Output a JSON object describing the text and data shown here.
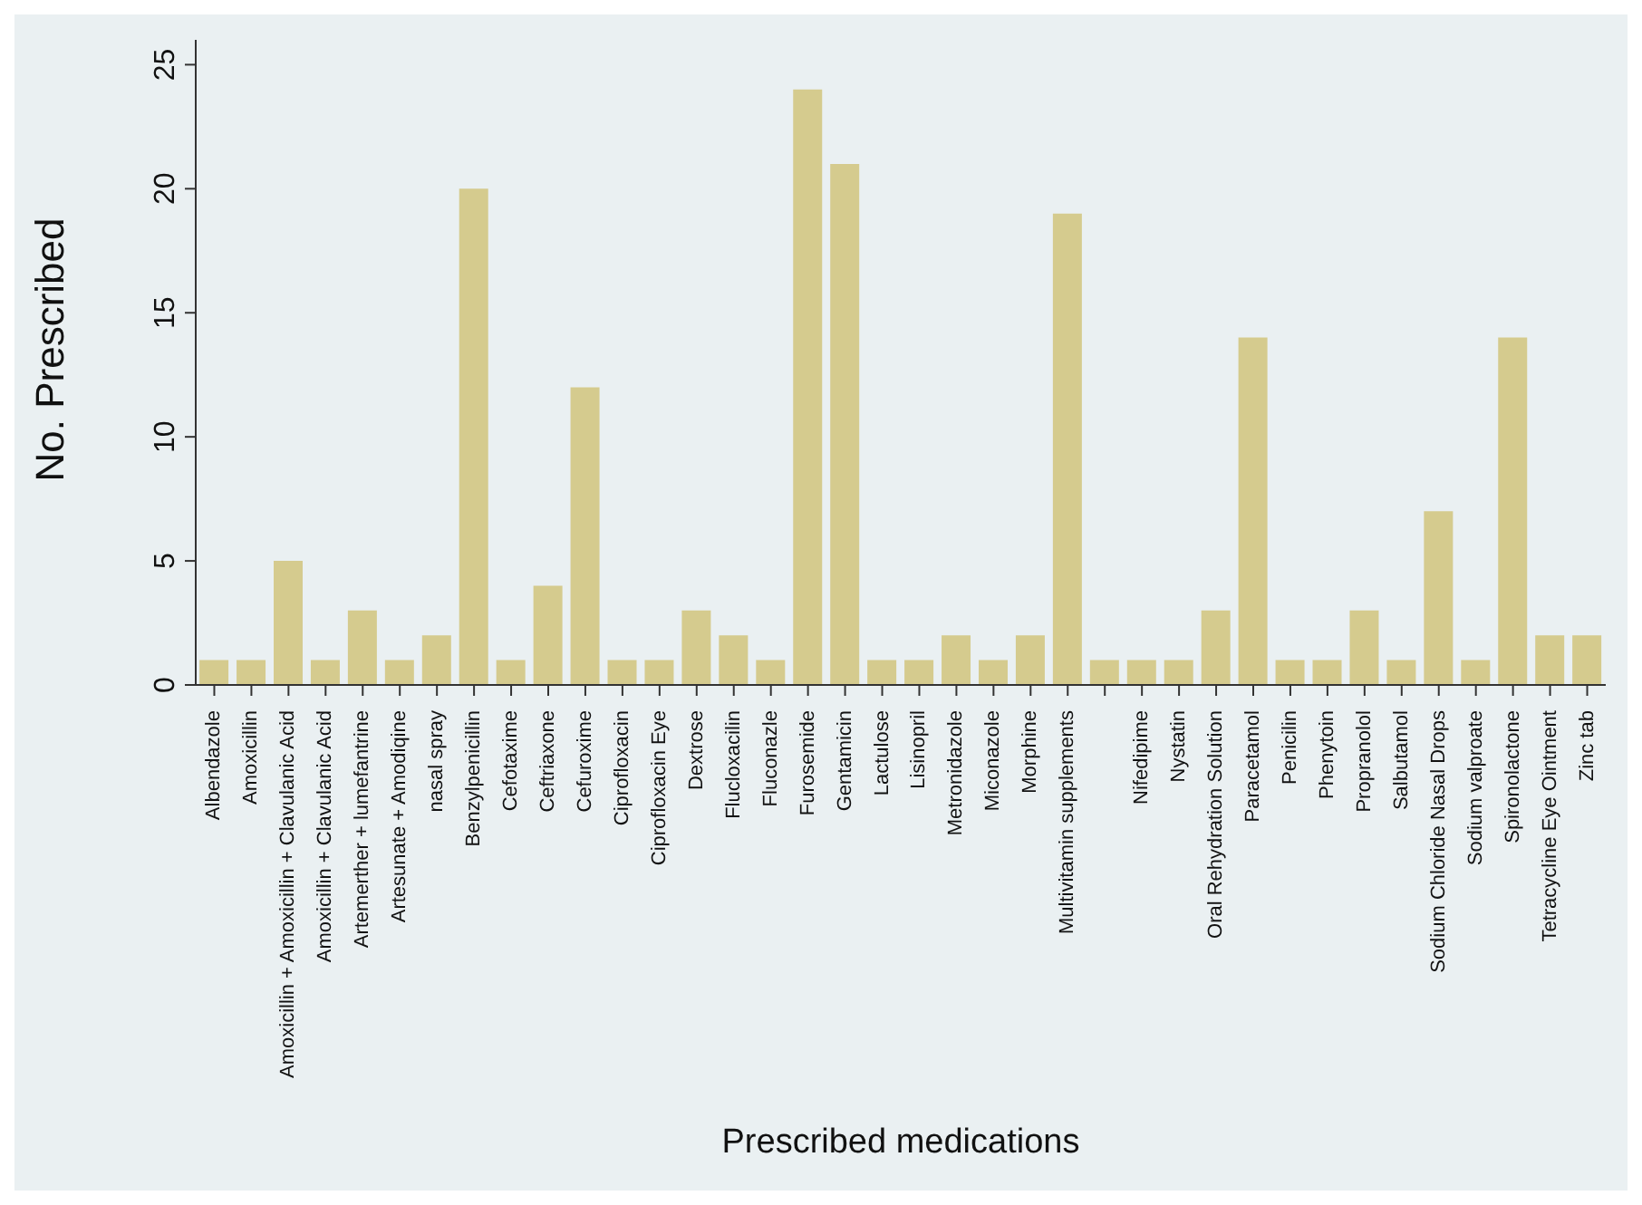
{
  "chart_data": {
    "type": "bar",
    "xlabel": "Prescribed medications",
    "ylabel": "No. Prescribed",
    "categories": [
      "Albendazole",
      "Amoxicillin",
      "Amoxicillin + Amoxicillin + Clavulanic Acid",
      "Amoxicillin + Clavulanic Acid",
      "Artemerther + lumefantrine",
      "Artesunate + Amodiqine",
      "nasal spray",
      "Benzylpenicillin",
      "Cefotaxime",
      "Ceftriaxone",
      "Cefuroxime",
      "Ciprofloxacin",
      "Ciprofloxacin Eye",
      "Dextrose",
      "Flucloxacilin",
      "Fluconazle",
      "Furosemide",
      "Gentamicin",
      "Lactulose",
      "Lisinopril",
      "Metronidazole",
      "Miconazole",
      "Morphine",
      "Multivitamin supplements",
      null,
      "Nifedipime",
      "Nystatin",
      "Oral Rehydration Solution",
      "Paracetamol",
      "Penicilin",
      "Phenytoin",
      "Propranolol",
      "Salbutamol",
      "Sodium Chloride Nasal Drops",
      "Sodium valproate",
      "Spironolactone",
      "Tetracycline Eye Ointment",
      "Zinc tab"
    ],
    "values": [
      1,
      1,
      5,
      1,
      3,
      1,
      2,
      20,
      1,
      4,
      12,
      1,
      1,
      3,
      2,
      1,
      24,
      21,
      1,
      1,
      2,
      1,
      2,
      19,
      1,
      1,
      1,
      3,
      14,
      1,
      1,
      3,
      1,
      7,
      1,
      14,
      2,
      2
    ],
    "color": "#d5cb8e",
    "ylim": [
      0,
      26
    ],
    "yticks": [
      0,
      5,
      10,
      15,
      20,
      25
    ],
    "grid": false
  }
}
